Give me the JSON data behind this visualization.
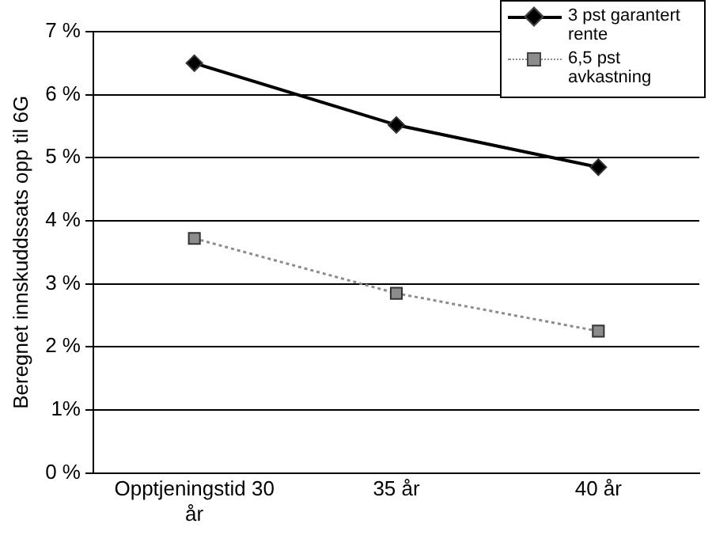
{
  "chart_data": {
    "type": "line",
    "ylabel": "Beregnet innskuddssats opp til 6G",
    "categories": [
      "Opptjeningstid 30 år",
      "35 år",
      "40 år"
    ],
    "series": [
      {
        "name": "3 pst garantert rente",
        "color": "#000000",
        "values": [
          6.5,
          5.52,
          4.85
        ],
        "marker": "diamond",
        "line_style": "solid"
      },
      {
        "name": "6,5 pst avkastning",
        "color": "#8c8c8c",
        "values": [
          3.72,
          2.85,
          2.25
        ],
        "marker": "square",
        "line_style": "dotted"
      }
    ],
    "ylim": [
      0,
      7
    ],
    "yticks": [
      {
        "value": 0,
        "label": "0 %"
      },
      {
        "value": 1,
        "label": "1%"
      },
      {
        "value": 2,
        "label": "2 %"
      },
      {
        "value": 3,
        "label": "3 %"
      },
      {
        "value": 4,
        "label": "4 %"
      },
      {
        "value": 5,
        "label": "5 %"
      },
      {
        "value": 6,
        "label": "6 %"
      },
      {
        "value": 7,
        "label": "7 %"
      }
    ],
    "grid": "y",
    "legend": "top right"
  }
}
